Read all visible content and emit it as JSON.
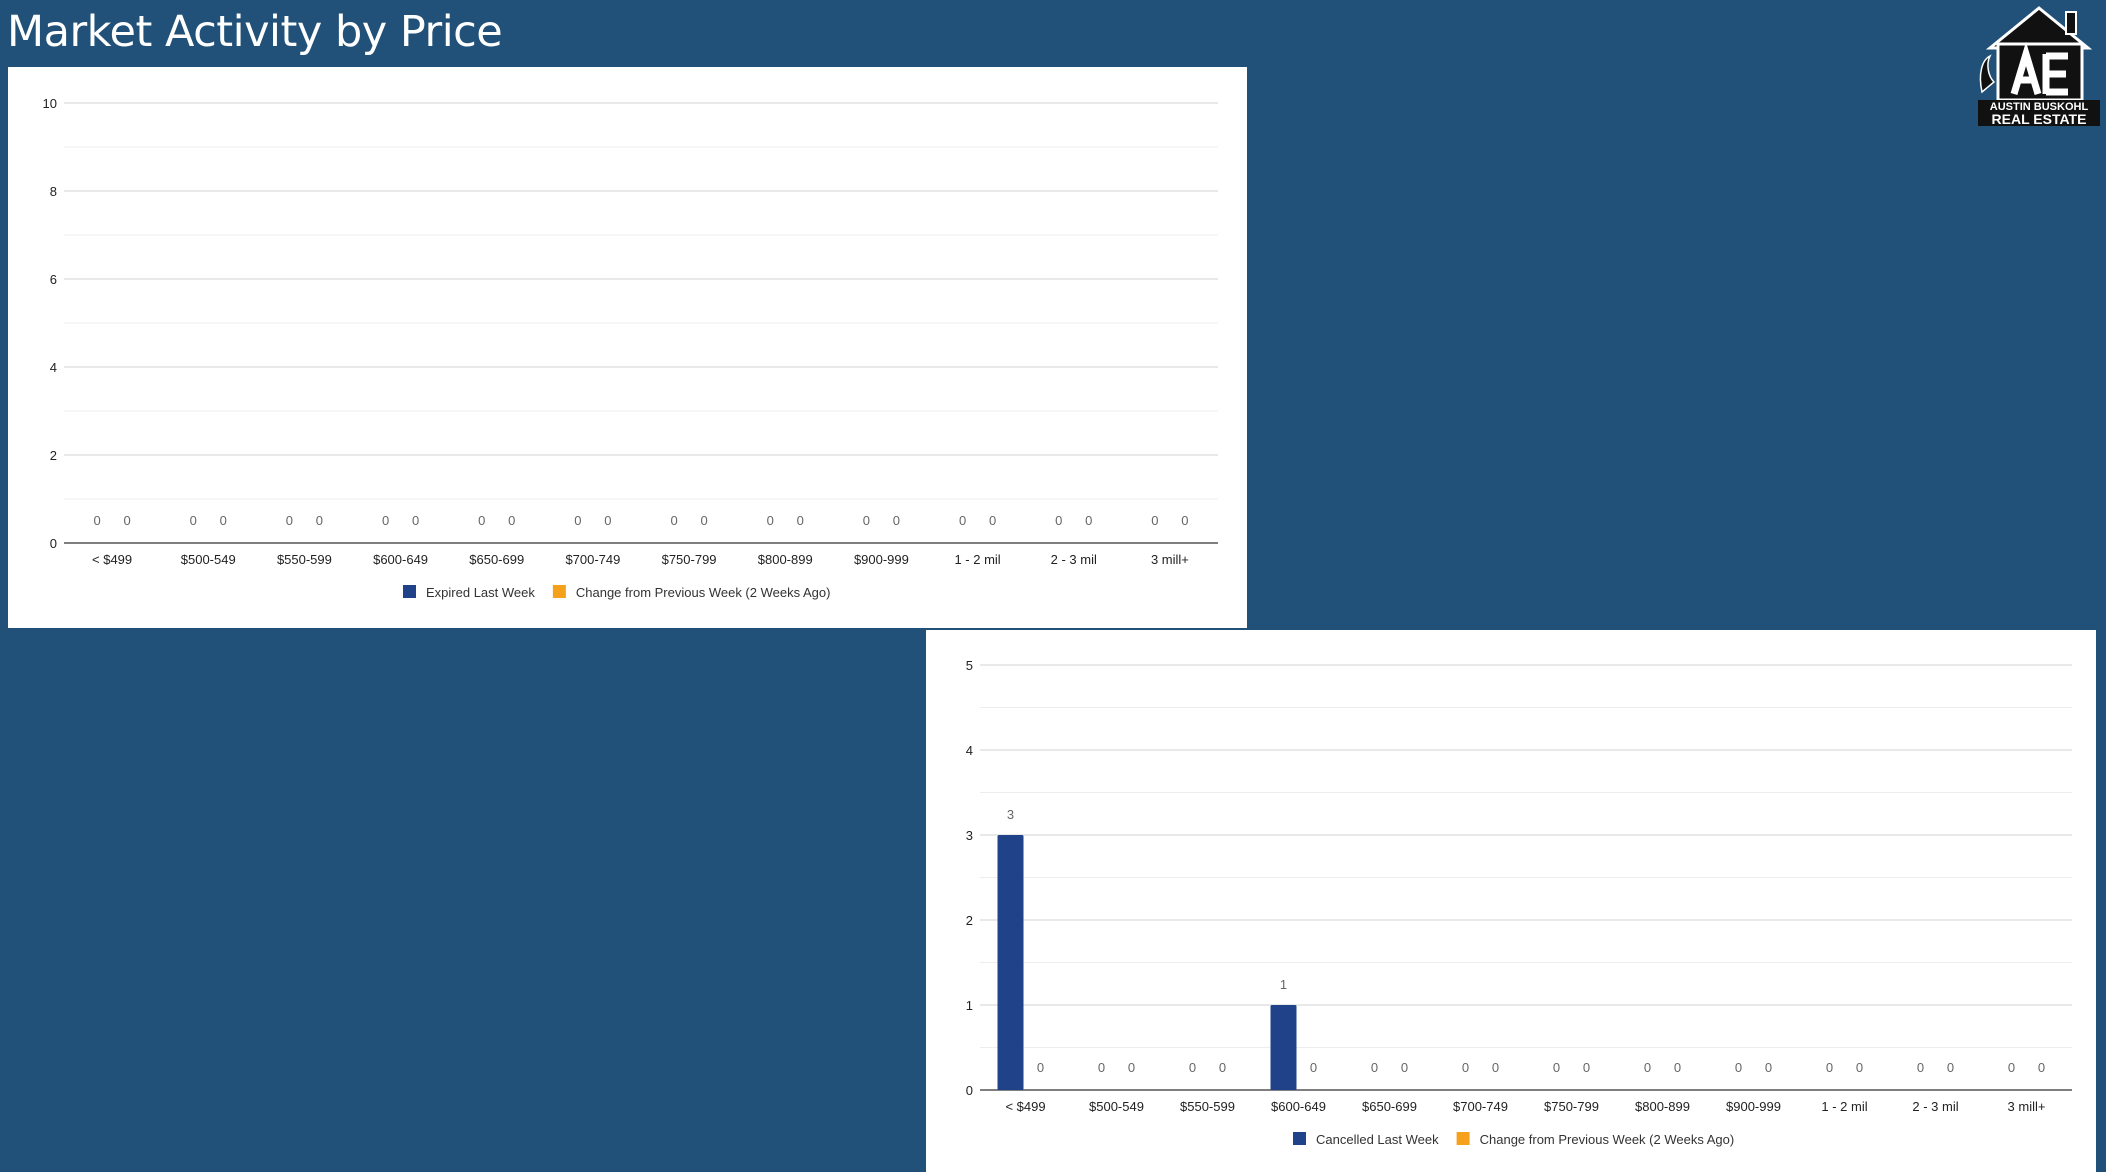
{
  "page": {
    "title": "Market Activity by Price"
  },
  "logo": {
    "line1": "AUSTIN BUSKOHL",
    "line2": "REAL ESTATE"
  },
  "colors": {
    "background": "#215178",
    "panel": "#ffffff",
    "series_primary": "#1f4289",
    "series_secondary": "#f5a11c",
    "gridline": "#dcdcdc",
    "axis_text": "#222222",
    "label_text": "#666666"
  },
  "chart_data": [
    {
      "type": "bar",
      "categories": [
        "< $499",
        "$500-549",
        "$550-599",
        "$600-649",
        "$650-699",
        "$700-749",
        "$750-799",
        "$800-899",
        "$900-999",
        "1 - 2 mil",
        "2 - 3 mil",
        "3 mill+"
      ],
      "series": [
        {
          "name": "Expired Last Week",
          "values": [
            0,
            0,
            0,
            0,
            0,
            0,
            0,
            0,
            0,
            0,
            0,
            0
          ],
          "color": "#1f4289"
        },
        {
          "name": "Change from Previous Week (2 Weeks Ago)",
          "values": [
            0,
            0,
            0,
            0,
            0,
            0,
            0,
            0,
            0,
            0,
            0,
            0
          ],
          "color": "#f5a11c"
        }
      ],
      "title": "",
      "xlabel": "",
      "ylabel": "",
      "ylim": [
        0,
        10
      ],
      "yticks": [
        0,
        2,
        4,
        6,
        8,
        10
      ],
      "grid": true,
      "legend": "bottom"
    },
    {
      "type": "bar",
      "categories": [
        "< $499",
        "$500-549",
        "$550-599",
        "$600-649",
        "$650-699",
        "$700-749",
        "$750-799",
        "$800-899",
        "$900-999",
        "1 - 2 mil",
        "2 - 3 mil",
        "3 mill+"
      ],
      "series": [
        {
          "name": "Cancelled Last Week",
          "values": [
            3,
            0,
            0,
            1,
            0,
            0,
            0,
            0,
            0,
            0,
            0,
            0
          ],
          "color": "#1f4289"
        },
        {
          "name": "Change from Previous Week (2 Weeks Ago)",
          "values": [
            0,
            0,
            0,
            0,
            0,
            0,
            0,
            0,
            0,
            0,
            0,
            0
          ],
          "color": "#f5a11c"
        }
      ],
      "title": "",
      "xlabel": "",
      "ylabel": "",
      "ylim": [
        0,
        5
      ],
      "yticks": [
        0,
        1,
        2,
        3,
        4,
        5
      ],
      "grid": true,
      "legend": "bottom"
    }
  ]
}
